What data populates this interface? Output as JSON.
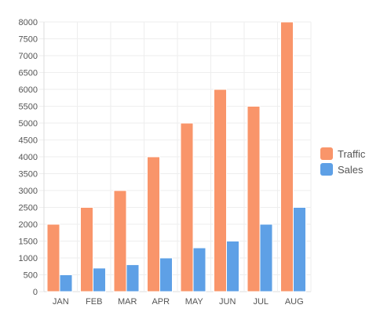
{
  "chart_data": {
    "type": "bar",
    "categories": [
      "JAN",
      "FEB",
      "MAR",
      "APR",
      "MAY",
      "JUN",
      "JUL",
      "AUG"
    ],
    "series": [
      {
        "name": "Traffic",
        "color": "#F9956A",
        "values": [
          2000,
          2500,
          3000,
          4000,
          5000,
          6000,
          5500,
          8000
        ]
      },
      {
        "name": "Sales",
        "color": "#5EA0E6",
        "values": [
          500,
          700,
          800,
          1000,
          1300,
          1500,
          2000,
          2500
        ]
      }
    ],
    "yticks": [
      "0",
      "500",
      "1000",
      "1500",
      "2000",
      "2500",
      "3000",
      "3500",
      "4000",
      "4500",
      "5000",
      "5500",
      "6000",
      "6500",
      "7000",
      "7500",
      "8000"
    ],
    "ylim": [
      0,
      8000
    ],
    "grid": true,
    "legend_position": "right",
    "title": "",
    "xlabel": "",
    "ylabel": ""
  }
}
